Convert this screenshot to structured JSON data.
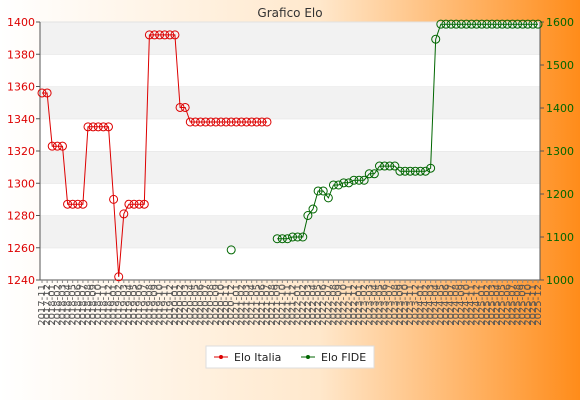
{
  "chart_data": {
    "type": "line",
    "title": "Grafico Elo",
    "colors": {
      "italia": "#dd0000",
      "fide": "#006600",
      "background_left": "#ffffff",
      "background_right": "#ff8c1a"
    },
    "left_axis": {
      "min": 1240,
      "max": 1400,
      "step": 20,
      "ticks": [
        1240,
        1260,
        1280,
        1300,
        1320,
        1340,
        1360,
        1380,
        1400
      ]
    },
    "right_axis": {
      "min": 1000,
      "max": 1600,
      "step": 100,
      "ticks": [
        1000,
        1100,
        1200,
        1300,
        1400,
        1500,
        1600
      ]
    },
    "x_labels": [
      "2017-11",
      "2017-12",
      "2018-01",
      "2018-02",
      "2018-03",
      "2018-04",
      "2018-05",
      "2018-06",
      "2018-07",
      "2018-08",
      "2018-09",
      "2018-10",
      "2018-11",
      "2018-12",
      "2019-01",
      "2019-02",
      "2019-03",
      "2019-04",
      "2019-05",
      "2019-06",
      "2019-07",
      "2019-08",
      "2019-09",
      "2019-10",
      "2019-11",
      "2019-12",
      "2020-01",
      "2020-02",
      "2020-03",
      "2020-04",
      "2020-05",
      "2020-06",
      "2020-07",
      "2020-08",
      "2020-09",
      "2020-10",
      "2020-11",
      "2020-12",
      "2021-01",
      "2021-02",
      "2021-03",
      "2021-04",
      "2021-05",
      "2021-06",
      "2021-07",
      "2021-08",
      "2021-09",
      "2021-10",
      "2021-11",
      "2021-12",
      "2022-01",
      "2022-02",
      "2022-03",
      "2022-04",
      "2022-05",
      "2022-06",
      "2022-07",
      "2022-08",
      "2022-09",
      "2022-10",
      "2022-11",
      "2022-12",
      "2023-01",
      "2023-02",
      "2023-03",
      "2023-04",
      "2023-05",
      "2023-06",
      "2023-07",
      "2023-08",
      "2023-09",
      "2023-10",
      "2023-11",
      "2023-12",
      "2024-01",
      "2024-02",
      "2024-03",
      "2024-04",
      "2024-05",
      "2024-06",
      "2024-07",
      "2024-08",
      "2024-09",
      "2024-10",
      "2024-11",
      "2024-12",
      "2025-01",
      "2025-02",
      "2025-03",
      "2025-04",
      "2025-05",
      "2025-06",
      "2025-07",
      "2025-08",
      "2025-09",
      "2025-10",
      "2025-11",
      "2025-12"
    ],
    "series": [
      {
        "name": "Elo Italia",
        "axis": "left",
        "values": [
          1356,
          1356,
          1323,
          1323,
          1323,
          1287,
          1287,
          1287,
          1287,
          1335,
          1335,
          1335,
          1335,
          1335,
          1290,
          1242,
          1281,
          1287,
          1287,
          1287,
          1287,
          1392,
          1392,
          1392,
          1392,
          1392,
          1392,
          1347,
          1347,
          1338,
          1338,
          1338,
          1338,
          1338,
          1338,
          1338,
          1338,
          1338,
          1338,
          1338,
          1338,
          1338,
          1338,
          1338,
          1338,
          null,
          null,
          null,
          null,
          null,
          null,
          null,
          null,
          null,
          null,
          null,
          null,
          null,
          null,
          null,
          null,
          null,
          null,
          null,
          null,
          null,
          null,
          null,
          null,
          null,
          null,
          null,
          null,
          null,
          null,
          null,
          null,
          null,
          null,
          null,
          null,
          null,
          null,
          null,
          null,
          null,
          null,
          null,
          null,
          null,
          null,
          null,
          null,
          null,
          null,
          null,
          null,
          null
        ]
      },
      {
        "name": "Elo FIDE",
        "axis": "right",
        "values": [
          null,
          null,
          null,
          null,
          null,
          null,
          null,
          null,
          null,
          null,
          null,
          null,
          null,
          null,
          null,
          null,
          null,
          null,
          null,
          null,
          null,
          null,
          null,
          null,
          null,
          null,
          null,
          null,
          null,
          null,
          null,
          null,
          null,
          null,
          null,
          null,
          null,
          1070,
          null,
          null,
          null,
          null,
          null,
          null,
          null,
          null,
          1096,
          1096,
          1096,
          1100,
          1100,
          1100,
          1150,
          1165,
          1207,
          1207,
          1191,
          1221,
          1221,
          1226,
          1226,
          1232,
          1232,
          1232,
          1247,
          1247,
          1265,
          1265,
          1265,
          1265,
          1253,
          1253,
          1253,
          1253,
          1253,
          1253,
          1260,
          1560,
          1595,
          1595,
          1595,
          1595,
          1595,
          1595,
          1595,
          1595,
          1595,
          1595,
          1595,
          1595,
          1595,
          1595,
          1595,
          1595,
          1595,
          1595,
          1595,
          1595
        ]
      }
    ],
    "legend_position": "bottom",
    "grid": true
  }
}
